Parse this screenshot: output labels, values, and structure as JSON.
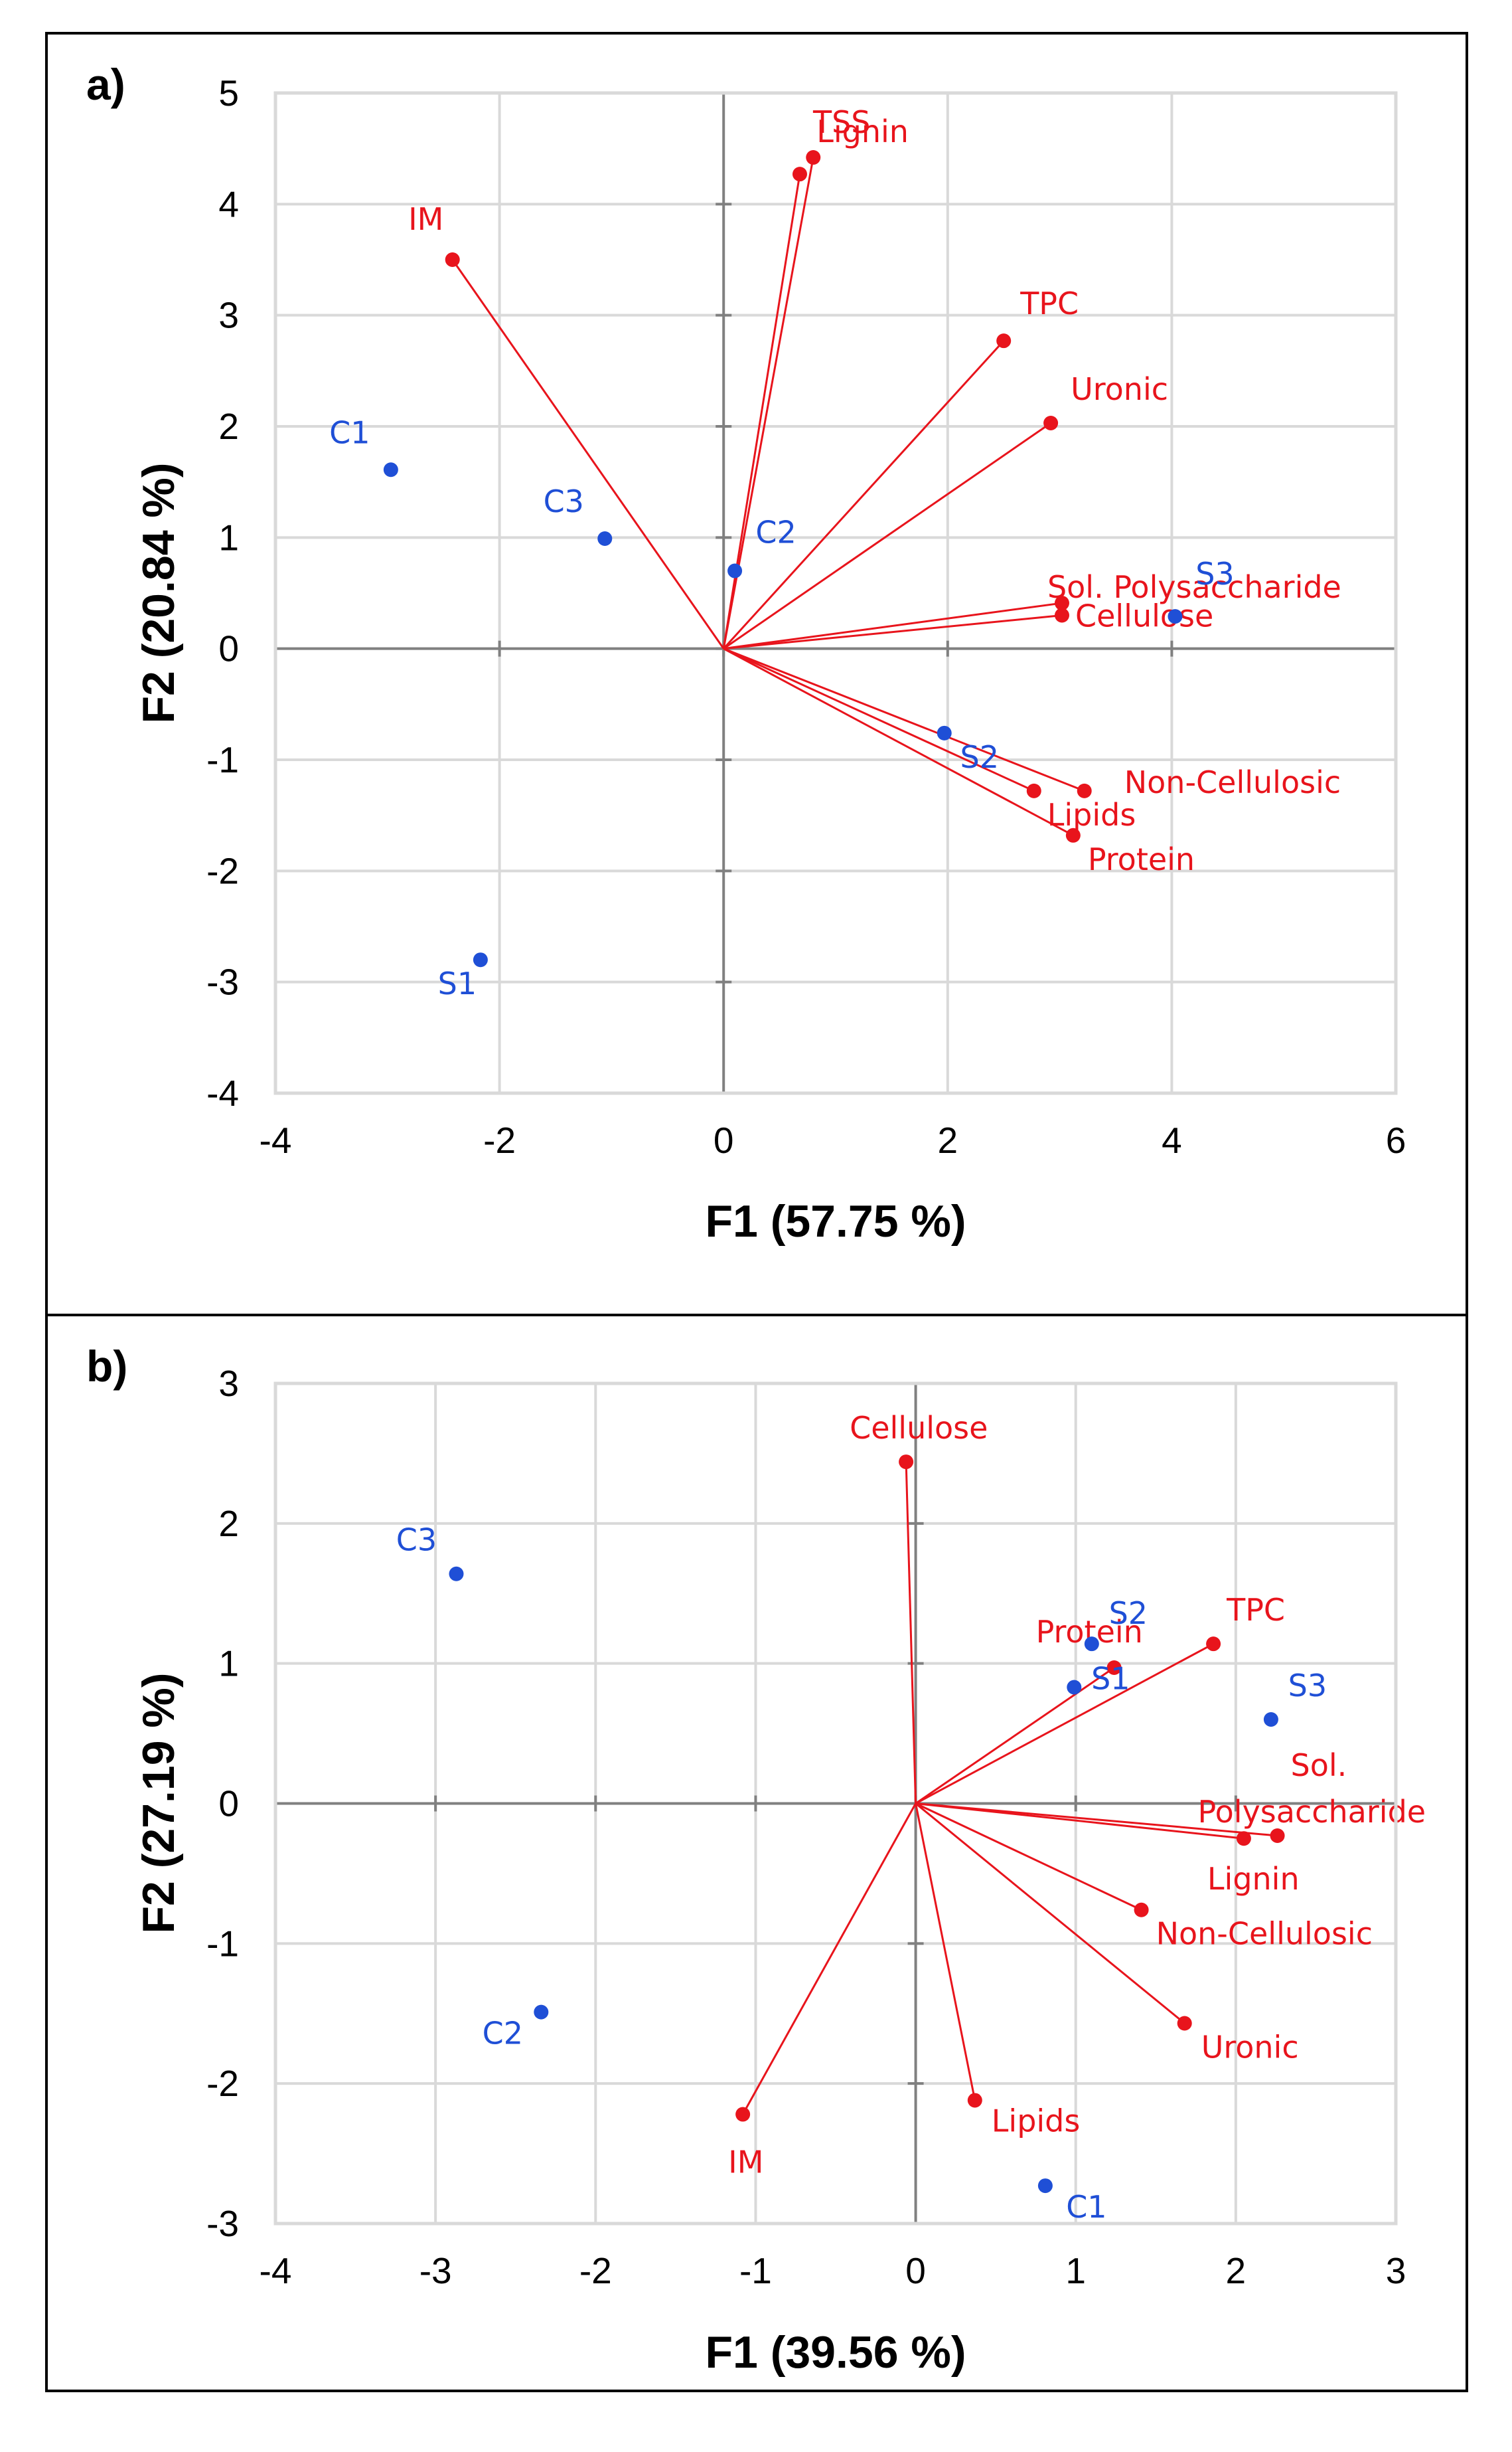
{
  "colors": {
    "variables": "#e8141c",
    "observations": "#1f4fd6"
  },
  "chart_data": [
    {
      "type": "scatter",
      "panel_label": "a)",
      "xlabel": "F1 (57.75 %)",
      "ylabel": "F2 (20.84 %)",
      "xlim": [
        -4,
        6
      ],
      "ylim": [
        -4,
        5
      ],
      "xticks": [
        "-4",
        "-2",
        "0",
        "2",
        "4",
        "6"
      ],
      "yticks": [
        "-4",
        "-3",
        "-2",
        "-1",
        "0",
        "1",
        "2",
        "3",
        "4",
        "5"
      ],
      "grid": true,
      "variables": [
        {
          "label": "TSS",
          "x": 0.68,
          "y": 4.27
        },
        {
          "label": "Lignin",
          "x": 0.8,
          "y": 4.42
        },
        {
          "label": "IM",
          "x": -2.42,
          "y": 3.5
        },
        {
          "label": "TPC",
          "x": 2.5,
          "y": 2.77
        },
        {
          "label": "Uronic",
          "x": 2.92,
          "y": 2.03
        },
        {
          "label": "Sol. Polysaccharide",
          "x": 3.02,
          "y": 0.41
        },
        {
          "label": "Cellulose",
          "x": 3.02,
          "y": 0.3
        },
        {
          "label": "Non-Cellulosic",
          "x": 3.22,
          "y": -1.28
        },
        {
          "label": "Lipids",
          "x": 2.77,
          "y": -1.28
        },
        {
          "label": "Protein",
          "x": 3.12,
          "y": -1.68
        }
      ],
      "observations": [
        {
          "label": "C1",
          "x": -2.97,
          "y": 1.61
        },
        {
          "label": "C3",
          "x": -1.06,
          "y": 0.99
        },
        {
          "label": "C2",
          "x": 0.1,
          "y": 0.7
        },
        {
          "label": "S3",
          "x": 4.03,
          "y": 0.29
        },
        {
          "label": "S2",
          "x": 1.97,
          "y": -0.76
        },
        {
          "label": "S1",
          "x": -2.17,
          "y": -2.8
        }
      ]
    },
    {
      "type": "scatter",
      "panel_label": "b)",
      "xlabel": "F1 (39.56 %)",
      "ylabel": "F2 (27.19 %)",
      "xlim": [
        -4,
        3
      ],
      "ylim": [
        -3,
        3
      ],
      "xticks": [
        "-4",
        "-3",
        "-2",
        "-1",
        "0",
        "1",
        "2",
        "3"
      ],
      "yticks": [
        "-3",
        "-2",
        "-1",
        "0",
        "1",
        "2",
        "3"
      ],
      "grid": true,
      "variables": [
        {
          "label": "Cellulose",
          "x": -0.06,
          "y": 2.44
        },
        {
          "label": "TPC",
          "x": 1.86,
          "y": 1.14
        },
        {
          "label": "Protein",
          "x": 1.24,
          "y": 0.97
        },
        {
          "label": "Sol.",
          "label2": "Polysaccharide",
          "x": 2.26,
          "y": -0.23
        },
        {
          "label": "Lignin",
          "x": 2.05,
          "y": -0.25
        },
        {
          "label": "Non-Cellulosic",
          "x": 1.41,
          "y": -0.76
        },
        {
          "label": "Uronic",
          "x": 1.68,
          "y": -1.57
        },
        {
          "label": "Lipids",
          "x": 0.37,
          "y": -2.12
        },
        {
          "label": "IM",
          "x": -1.08,
          "y": -2.22
        }
      ],
      "observations": [
        {
          "label": "C3",
          "x": -2.87,
          "y": 1.64
        },
        {
          "label": "S2",
          "x": 1.1,
          "y": 1.14
        },
        {
          "label": "S1",
          "x": 0.99,
          "y": 0.83
        },
        {
          "label": "S3",
          "x": 2.22,
          "y": 0.6
        },
        {
          "label": "C2",
          "x": -2.34,
          "y": -1.49
        },
        {
          "label": "C1",
          "x": 0.81,
          "y": -2.73
        }
      ]
    }
  ]
}
